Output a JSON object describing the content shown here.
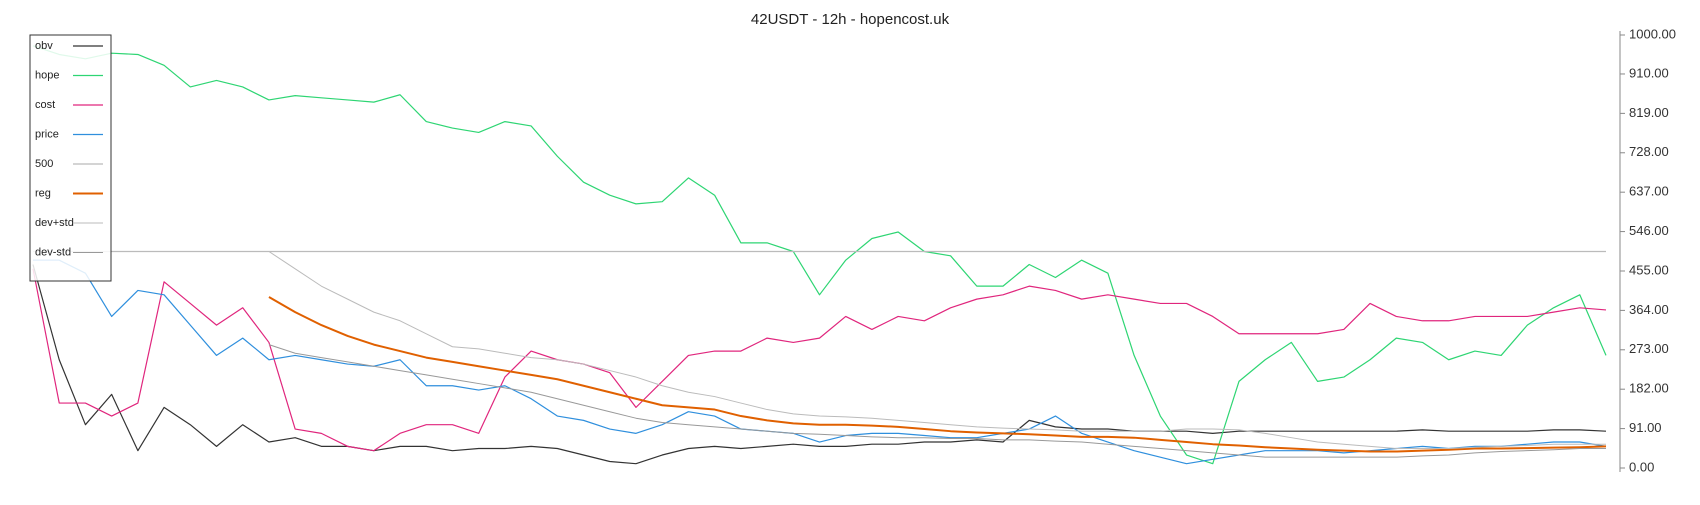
{
  "chart_data": {
    "type": "line",
    "title": "42USDT - 12h - hopencost.uk",
    "ylim": [
      0,
      1000
    ],
    "yticks": [
      {
        "value": 0,
        "label": "0.00"
      },
      {
        "value": 91,
        "label": "91.00"
      },
      {
        "value": 182,
        "label": "182.00"
      },
      {
        "value": 273,
        "label": "273.00"
      },
      {
        "value": 364,
        "label": "364.00"
      },
      {
        "value": 455,
        "label": "455.00"
      },
      {
        "value": 546,
        "label": "546.00"
      },
      {
        "value": 637,
        "label": "637.00"
      },
      {
        "value": 728,
        "label": "728.00"
      },
      {
        "value": 819,
        "label": "819.00"
      },
      {
        "value": 910,
        "label": "910.00"
      },
      {
        "value": 1000,
        "label": "1000.00"
      }
    ],
    "y_axis_side": "right",
    "legend": "upper left",
    "grid": false,
    "series": [
      {
        "name": "obv",
        "color": "#333333",
        "linewidth": 1.2,
        "values": [
          470,
          250,
          100,
          170,
          40,
          140,
          100,
          50,
          100,
          60,
          70,
          50,
          50,
          40,
          50,
          50,
          40,
          45,
          45,
          50,
          45,
          30,
          15,
          10,
          30,
          45,
          50,
          45,
          50,
          55,
          50,
          50,
          55,
          55,
          60,
          60,
          65,
          60,
          110,
          95,
          90,
          90,
          85,
          85,
          85,
          80,
          85,
          85,
          85,
          85,
          85,
          85,
          85,
          88,
          85,
          85,
          85,
          85,
          88,
          88,
          85
        ]
      },
      {
        "name": "hope",
        "color": "#2ed573",
        "linewidth": 1.2,
        "values": [
          975,
          955,
          945,
          958,
          955,
          930,
          880,
          895,
          880,
          850,
          860,
          855,
          850,
          845,
          862,
          800,
          785,
          775,
          800,
          790,
          720,
          660,
          630,
          610,
          615,
          670,
          630,
          520,
          520,
          500,
          400,
          480,
          530,
          545,
          500,
          490,
          420,
          420,
          470,
          440,
          480,
          450,
          260,
          120,
          30,
          10,
          200,
          250,
          290,
          200,
          210,
          250,
          300,
          290,
          250,
          270,
          260,
          330,
          370,
          400,
          260
        ]
      },
      {
        "name": "cost",
        "color": "#e0267d",
        "linewidth": 1.2,
        "values": [
          460,
          150,
          150,
          120,
          150,
          430,
          380,
          330,
          370,
          290,
          90,
          80,
          50,
          40,
          80,
          100,
          100,
          80,
          210,
          270,
          250,
          240,
          220,
          140,
          200,
          260,
          270,
          270,
          300,
          290,
          300,
          350,
          320,
          350,
          340,
          370,
          390,
          400,
          420,
          410,
          390,
          400,
          390,
          380,
          380,
          350,
          310,
          310,
          310,
          310,
          320,
          380,
          350,
          340,
          340,
          350,
          350,
          350,
          360,
          370,
          365
        ]
      },
      {
        "name": "price",
        "color": "#2f8fdd",
        "linewidth": 1.2,
        "values": [
          480,
          480,
          450,
          350,
          410,
          400,
          330,
          260,
          300,
          250,
          260,
          250,
          240,
          235,
          250,
          190,
          190,
          180,
          190,
          160,
          120,
          110,
          90,
          80,
          100,
          130,
          120,
          90,
          85,
          80,
          60,
          75,
          80,
          80,
          75,
          70,
          70,
          80,
          90,
          120,
          80,
          60,
          40,
          25,
          10,
          20,
          30,
          40,
          40,
          40,
          35,
          40,
          45,
          50,
          45,
          50,
          50,
          55,
          60,
          60,
          50
        ]
      },
      {
        "name": "500",
        "color": "#bbbbbb",
        "linewidth": 1.2,
        "values": [
          500,
          500,
          500,
          500,
          500,
          500,
          500,
          500,
          500,
          500,
          500,
          500,
          500,
          500,
          500,
          500,
          500,
          500,
          500,
          500,
          500,
          500,
          500,
          500,
          500,
          500,
          500,
          500,
          500,
          500,
          500,
          500,
          500,
          500,
          500,
          500,
          500,
          500,
          500,
          500,
          500,
          500,
          500,
          500,
          500,
          500,
          500,
          500,
          500,
          500,
          500,
          500,
          500,
          500,
          500,
          500,
          500,
          500,
          500,
          500,
          500
        ]
      },
      {
        "name": "reg",
        "color": "#e06000",
        "linewidth": 2,
        "values": [
          null,
          null,
          null,
          null,
          null,
          null,
          null,
          null,
          null,
          395,
          360,
          330,
          305,
          285,
          270,
          255,
          245,
          235,
          225,
          215,
          205,
          190,
          175,
          160,
          145,
          140,
          135,
          120,
          110,
          103,
          100,
          100,
          98,
          95,
          90,
          85,
          82,
          80,
          78,
          75,
          72,
          72,
          70,
          65,
          60,
          55,
          52,
          48,
          45,
          42,
          40,
          38,
          38,
          40,
          42,
          45,
          45,
          46,
          47,
          48,
          50
        ]
      },
      {
        "name": "dev+std",
        "color": "#bbbbbb",
        "linewidth": 1,
        "values": [
          null,
          null,
          null,
          null,
          null,
          null,
          null,
          null,
          null,
          500,
          460,
          420,
          390,
          360,
          340,
          310,
          280,
          275,
          265,
          255,
          250,
          240,
          225,
          210,
          190,
          175,
          165,
          150,
          135,
          125,
          120,
          118,
          115,
          110,
          105,
          100,
          95,
          92,
          90,
          88,
          85,
          85,
          85,
          85,
          90,
          90,
          88,
          80,
          70,
          60,
          55,
          50,
          45,
          45,
          45,
          48,
          50,
          52,
          55,
          55,
          55
        ]
      },
      {
        "name": "dev-std",
        "color": "#999999",
        "linewidth": 1,
        "values": [
          null,
          null,
          null,
          null,
          null,
          null,
          null,
          null,
          null,
          285,
          265,
          255,
          245,
          235,
          225,
          215,
          205,
          195,
          185,
          175,
          160,
          145,
          130,
          115,
          105,
          100,
          95,
          90,
          85,
          80,
          78,
          75,
          72,
          70,
          70,
          68,
          68,
          65,
          65,
          62,
          60,
          55,
          50,
          45,
          40,
          35,
          30,
          25,
          25,
          25,
          25,
          25,
          25,
          28,
          30,
          35,
          38,
          40,
          42,
          45,
          45
        ]
      }
    ]
  }
}
